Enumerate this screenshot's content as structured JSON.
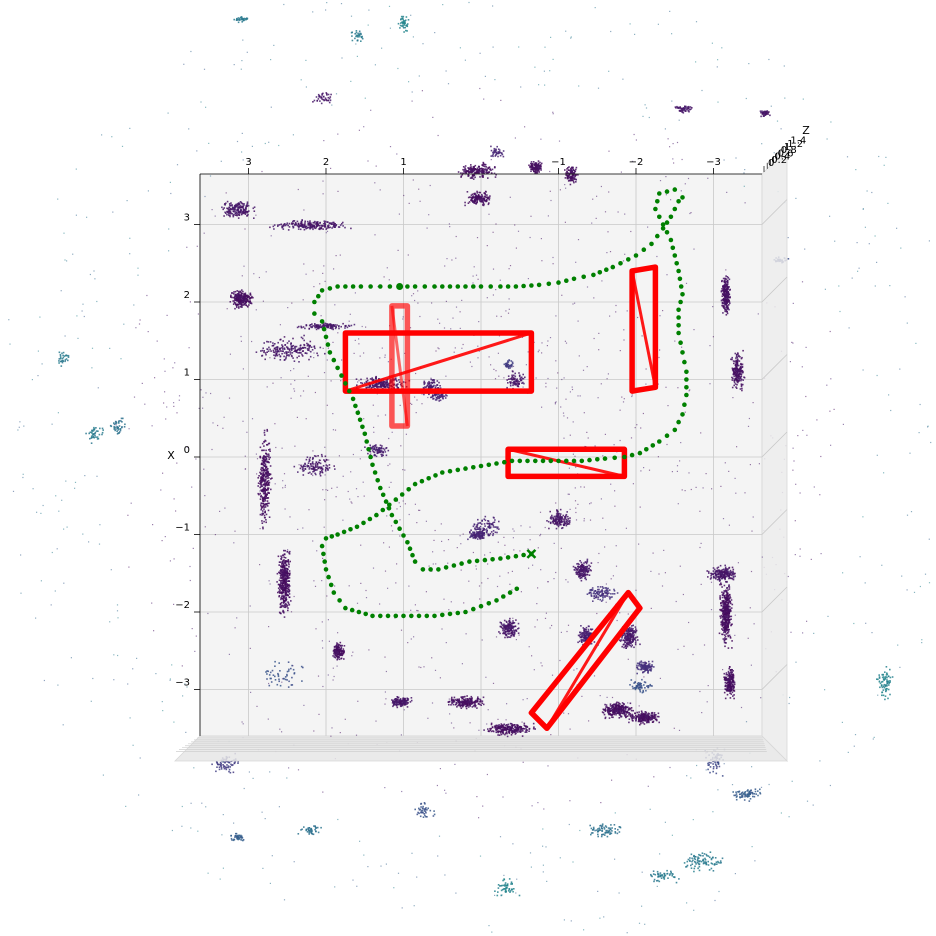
{
  "chart_data": {
    "type": "scatter",
    "title": "",
    "xlabel": "X",
    "ylabel": "",
    "zlabel": "Z",
    "projection": "3d-top-down",
    "grid": true,
    "horizontal_axis": {
      "ticks": [
        3,
        2,
        1,
        -1,
        -2,
        -3
      ],
      "tick_labels": [
        "3",
        "2",
        "1",
        "−1",
        "−2",
        "−3"
      ],
      "range": [
        3.65,
        -3.65
      ]
    },
    "x_axis": {
      "ticks": [
        3,
        2,
        1,
        0,
        -1,
        -2,
        -3
      ],
      "tick_labels": [
        "3",
        "2",
        "1",
        "0",
        "−1",
        "−2",
        "−3"
      ],
      "range": [
        3.65,
        -3.65
      ]
    },
    "z_axis": {
      "tick_labels": [
        "1.4",
        "1.2",
        "1",
        "0.8",
        "0.6",
        "0.4",
        "0.2",
        "0"
      ]
    },
    "point_cloud": {
      "colormap": "viridis",
      "description": "lidar points colored by height",
      "clusters": [
        {
          "h": 3.15,
          "x": 3.2,
          "w": 0.5,
          "d": 0.25,
          "n": 180,
          "c": 0.05
        },
        {
          "h": 2.2,
          "x": 3.0,
          "w": 1.2,
          "d": 0.15,
          "n": 220,
          "c": 0.05
        },
        {
          "h": 3.1,
          "x": 2.05,
          "w": 0.35,
          "d": 0.3,
          "n": 250,
          "c": 0.02
        },
        {
          "h": 2.0,
          "x": 1.7,
          "w": 0.9,
          "d": 0.1,
          "n": 120,
          "c": 0.05
        },
        {
          "h": 2.5,
          "x": 1.4,
          "w": 1.1,
          "d": 0.4,
          "n": 200,
          "c": 0.05
        },
        {
          "h": 1.3,
          "x": 0.95,
          "w": 0.8,
          "d": 0.25,
          "n": 230,
          "c": 0.05
        },
        {
          "h": 0.65,
          "x": 0.9,
          "w": 0.3,
          "d": 0.3,
          "n": 100,
          "c": 0.08
        },
        {
          "h": 0.05,
          "x": 3.7,
          "w": 0.6,
          "d": 0.25,
          "n": 200,
          "c": 0.02
        },
        {
          "h": 0.05,
          "x": 3.35,
          "w": 0.4,
          "d": 0.25,
          "n": 150,
          "c": 0.02
        },
        {
          "h": -0.7,
          "x": 3.75,
          "w": 0.25,
          "d": 0.2,
          "n": 120,
          "c": 0.02
        },
        {
          "h": -1.15,
          "x": 3.65,
          "w": 0.2,
          "d": 0.3,
          "n": 120,
          "c": 0.02
        },
        {
          "h": -3.15,
          "x": 2.1,
          "w": 0.15,
          "d": 0.6,
          "n": 250,
          "c": 0.03
        },
        {
          "h": -3.3,
          "x": 1.1,
          "w": 0.2,
          "d": 0.6,
          "n": 200,
          "c": 0.03
        },
        {
          "h": -3.1,
          "x": -1.5,
          "w": 0.5,
          "d": 0.25,
          "n": 200,
          "c": 0.05
        },
        {
          "h": 2.8,
          "x": -0.3,
          "w": 0.2,
          "d": 1.5,
          "n": 320,
          "c": 0.02
        },
        {
          "h": 2.55,
          "x": -1.6,
          "w": 0.2,
          "d": 1.1,
          "n": 380,
          "c": 0.02
        },
        {
          "h": 1.85,
          "x": -2.5,
          "w": 0.2,
          "d": 0.3,
          "n": 140,
          "c": 0.02
        },
        {
          "h": 1.05,
          "x": -3.15,
          "w": 0.35,
          "d": 0.15,
          "n": 150,
          "c": 0.05
        },
        {
          "h": 0.2,
          "x": -3.15,
          "w": 0.6,
          "d": 0.2,
          "n": 200,
          "c": 0.02
        },
        {
          "h": -0.35,
          "x": -3.5,
          "w": 0.8,
          "d": 0.2,
          "n": 260,
          "c": 0.02
        },
        {
          "h": -1.75,
          "x": -3.25,
          "w": 0.45,
          "d": 0.25,
          "n": 260,
          "c": 0.02
        },
        {
          "h": -2.1,
          "x": -3.35,
          "w": 0.5,
          "d": 0.2,
          "n": 220,
          "c": 0.02
        },
        {
          "h": -3.15,
          "x": -2.0,
          "w": 0.2,
          "d": 1.0,
          "n": 400,
          "c": 0.02
        },
        {
          "h": -3.2,
          "x": -2.9,
          "w": 0.2,
          "d": 0.55,
          "n": 200,
          "c": 0.02
        },
        {
          "h": -1.0,
          "x": -0.8,
          "w": 0.4,
          "d": 0.3,
          "n": 150,
          "c": 0.05
        },
        {
          "h": -1.3,
          "x": -1.45,
          "w": 0.3,
          "d": 0.3,
          "n": 150,
          "c": 0.05
        },
        {
          "h": 0.05,
          "x": -1.0,
          "w": 0.3,
          "d": 0.15,
          "n": 100,
          "c": 0.1
        },
        {
          "h": -0.35,
          "x": -2.2,
          "w": 0.3,
          "d": 0.3,
          "n": 160,
          "c": 0.05
        },
        {
          "h": -1.9,
          "x": -2.3,
          "w": 0.3,
          "d": 0.4,
          "n": 200,
          "c": 0.05
        },
        {
          "h": -1.35,
          "x": -2.3,
          "w": 0.3,
          "d": 0.3,
          "n": 140,
          "c": 0.08
        },
        {
          "h": -2.1,
          "x": -2.7,
          "w": 0.3,
          "d": 0.2,
          "n": 120,
          "c": 0.15
        },
        {
          "h": 2.15,
          "x": -0.1,
          "w": 0.6,
          "d": 0.35,
          "n": 120,
          "c": 0.05
        },
        {
          "h": 1.35,
          "x": 0.1,
          "w": 0.4,
          "d": 0.2,
          "n": 80,
          "c": 0.08
        },
        {
          "h": 0.55,
          "x": 0.8,
          "w": 0.25,
          "d": 0.2,
          "n": 60,
          "c": 0.1
        },
        {
          "h": -0.45,
          "x": 1.0,
          "w": 0.35,
          "d": 0.3,
          "n": 80,
          "c": 0.05
        },
        {
          "h": -0.35,
          "x": 1.2,
          "w": 0.2,
          "d": 0.15,
          "n": 40,
          "c": 0.2
        },
        {
          "h": -0.05,
          "x": -0.9,
          "w": 0.5,
          "d": 0.35,
          "n": 100,
          "c": 0.1
        },
        {
          "h": -1.55,
          "x": -1.75,
          "w": 0.5,
          "d": 0.25,
          "n": 100,
          "c": 0.15
        },
        {
          "h": 2.6,
          "x": -2.8,
          "w": 0.8,
          "d": 0.5,
          "n": 50,
          "c": 0.3
        },
        {
          "h": -2.05,
          "x": -2.95,
          "w": 0.35,
          "d": 0.25,
          "n": 60,
          "c": 0.3
        },
        {
          "h": -2.85,
          "x": -5.2,
          "w": 0.7,
          "d": 0.35,
          "n": 90,
          "c": 0.5
        },
        {
          "h": -5.2,
          "x": -2.9,
          "w": 0.25,
          "d": 0.5,
          "n": 70,
          "c": 0.55
        },
        {
          "h": -0.3,
          "x": -5.55,
          "w": 0.4,
          "d": 0.3,
          "n": 50,
          "c": 0.55
        },
        {
          "h": -3.4,
          "x": -4.35,
          "w": 0.5,
          "d": 0.2,
          "n": 70,
          "c": 0.35
        },
        {
          "h": 2.2,
          "x": -4.8,
          "w": 0.35,
          "d": 0.15,
          "n": 40,
          "c": 0.45
        },
        {
          "h": -0.2,
          "x": 3.95,
          "w": 0.25,
          "d": 0.2,
          "n": 40,
          "c": 0.1
        },
        {
          "h": -3.85,
          "x": 2.55,
          "w": 0.25,
          "d": 0.1,
          "n": 30,
          "c": 0.25
        },
        {
          "h": -2.6,
          "x": 4.5,
          "w": 0.3,
          "d": 0.15,
          "n": 50,
          "c": 0.05
        },
        {
          "h": -3.65,
          "x": 4.45,
          "w": 0.2,
          "d": 0.1,
          "n": 40,
          "c": 0.05
        },
        {
          "h": 2.05,
          "x": 4.65,
          "w": 0.3,
          "d": 0.2,
          "n": 40,
          "c": 0.05
        },
        {
          "h": 3.3,
          "x": -3.95,
          "w": 0.4,
          "d": 0.3,
          "n": 70,
          "c": 0.2
        },
        {
          "h": 3.15,
          "x": -4.9,
          "w": 0.25,
          "d": 0.15,
          "n": 40,
          "c": 0.35
        },
        {
          "h": 4.7,
          "x": 0.4,
          "w": 0.25,
          "d": 0.3,
          "n": 40,
          "c": 0.45
        },
        {
          "h": -3.0,
          "x": -3.9,
          "w": 0.3,
          "d": 0.45,
          "n": 60,
          "c": 0.25
        },
        {
          "h": -1.6,
          "x": -4.8,
          "w": 0.6,
          "d": 0.25,
          "n": 70,
          "c": 0.45
        },
        {
          "h": -2.35,
          "x": -5.4,
          "w": 0.5,
          "d": 0.2,
          "n": 50,
          "c": 0.5
        },
        {
          "h": 5.4,
          "x": 1.3,
          "w": 0.25,
          "d": 0.3,
          "n": 30,
          "c": 0.5
        },
        {
          "h": 5.0,
          "x": 0.3,
          "w": 0.3,
          "d": 0.3,
          "n": 40,
          "c": 0.5
        },
        {
          "h": 3.1,
          "x": 5.65,
          "w": 0.3,
          "d": 0.1,
          "n": 30,
          "c": 0.5
        },
        {
          "h": 1.0,
          "x": 5.6,
          "w": 0.2,
          "d": 0.3,
          "n": 40,
          "c": 0.55
        },
        {
          "h": 1.6,
          "x": 5.45,
          "w": 0.2,
          "d": 0.2,
          "n": 30,
          "c": 0.5
        },
        {
          "h": -2.4,
          "x": -6.3,
          "w": 0.2,
          "d": 0.15,
          "n": 30,
          "c": 0.6
        },
        {
          "h": 0.75,
          "x": -4.55,
          "w": 0.35,
          "d": 0.3,
          "n": 40,
          "c": 0.3
        }
      ],
      "noise_points": 1600
    },
    "bounding_boxes": [
      {
        "corners": [
          [
            1.15,
            1.95
          ],
          [
            1.15,
            0.4
          ],
          [
            0.95,
            0.4
          ],
          [
            0.95,
            1.95
          ]
        ],
        "color": "#ff0000",
        "opacity": 0.65
      },
      {
        "corners": [
          [
            1.75,
            0.85
          ],
          [
            -0.65,
            0.85
          ],
          [
            -0.65,
            1.6
          ],
          [
            1.75,
            1.6
          ]
        ],
        "color": "#ff0000",
        "opacity": 1.0
      },
      {
        "corners": [
          [
            -0.35,
            0.1
          ],
          [
            -0.35,
            -0.25
          ],
          [
            -1.85,
            -0.25
          ],
          [
            -1.85,
            0.1
          ]
        ],
        "color": "#ff0000",
        "opacity": 1.0
      },
      {
        "corners": [
          [
            -1.95,
            2.4
          ],
          [
            -1.95,
            0.85
          ],
          [
            -2.25,
            0.9
          ],
          [
            -2.25,
            2.45
          ]
        ],
        "color": "#ff0000",
        "opacity": 1.0
      },
      {
        "corners": [
          [
            -1.9,
            -1.75
          ],
          [
            -0.65,
            -3.3
          ],
          [
            -0.85,
            -3.5
          ],
          [
            -2.05,
            -1.95
          ]
        ],
        "color": "#ff0000",
        "opacity": 1.0
      }
    ],
    "trajectory": {
      "color": "#008000",
      "points": [
        [
          -0.65,
          -1.25
        ],
        [
          -0.45,
          -1.28
        ],
        [
          -0.25,
          -1.31
        ],
        [
          -0.05,
          -1.33
        ],
        [
          0.15,
          -1.35
        ],
        [
          0.35,
          -1.4
        ],
        [
          0.55,
          -1.45
        ],
        [
          0.75,
          -1.45
        ],
        [
          0.85,
          -1.35
        ],
        [
          0.95,
          -1.1
        ],
        [
          1.15,
          -0.75
        ],
        [
          1.3,
          -0.4
        ],
        [
          1.4,
          -0.1
        ],
        [
          1.5,
          0.3
        ],
        [
          1.65,
          0.75
        ],
        [
          1.8,
          1.05
        ],
        [
          1.95,
          1.35
        ],
        [
          2.05,
          1.75
        ],
        [
          2.15,
          1.85
        ],
        [
          2.15,
          2.0
        ],
        [
          2.05,
          2.15
        ],
        [
          1.85,
          2.2
        ],
        [
          1.55,
          2.2
        ],
        [
          1.3,
          2.2
        ],
        [
          1.05,
          2.2
        ],
        [
          0.85,
          2.2
        ],
        [
          0.6,
          2.2
        ],
        [
          0.3,
          2.2
        ],
        [
          0.0,
          2.2
        ],
        [
          -0.25,
          2.2
        ],
        [
          -0.45,
          2.2
        ],
        [
          -0.75,
          2.22
        ],
        [
          -1.0,
          2.25
        ],
        [
          -1.2,
          2.3
        ],
        [
          -1.45,
          2.35
        ],
        [
          -1.7,
          2.45
        ],
        [
          -2.0,
          2.6
        ],
        [
          -2.2,
          2.75
        ],
        [
          -2.35,
          2.95
        ],
        [
          -2.45,
          3.1
        ],
        [
          -2.55,
          3.3
        ],
        [
          -2.6,
          3.35
        ],
        [
          -2.5,
          3.45
        ],
        [
          -2.3,
          3.4
        ],
        [
          -2.25,
          3.2
        ],
        [
          -2.45,
          2.8
        ],
        [
          -2.55,
          2.4
        ],
        [
          -2.6,
          2.1
        ],
        [
          -2.55,
          1.9
        ],
        [
          -2.55,
          1.6
        ],
        [
          -2.6,
          1.35
        ],
        [
          -2.65,
          1.1
        ],
        [
          -2.65,
          0.8
        ],
        [
          -2.6,
          0.55
        ],
        [
          -2.5,
          0.35
        ],
        [
          -2.3,
          0.2
        ],
        [
          -2.05,
          0.05
        ],
        [
          -1.85,
          0.0
        ],
        [
          -1.6,
          -0.02
        ],
        [
          -1.3,
          -0.05
        ],
        [
          -1.0,
          -0.05
        ],
        [
          -0.7,
          -0.05
        ],
        [
          -0.4,
          -0.05
        ],
        [
          -0.1,
          -0.1
        ],
        [
          0.2,
          -0.15
        ],
        [
          0.5,
          -0.2
        ],
        [
          0.85,
          -0.35
        ],
        [
          1.1,
          -0.55
        ],
        [
          1.35,
          -0.75
        ],
        [
          1.6,
          -0.9
        ],
        [
          1.85,
          -1.0
        ],
        [
          2.0,
          -1.05
        ],
        [
          2.05,
          -1.15
        ],
        [
          2.0,
          -1.45
        ],
        [
          1.9,
          -1.75
        ],
        [
          1.75,
          -1.95
        ],
        [
          1.4,
          -2.05
        ],
        [
          1.0,
          -2.05
        ],
        [
          0.6,
          -2.05
        ],
        [
          0.2,
          -2.0
        ],
        [
          -0.2,
          -1.85
        ],
        [
          -0.55,
          -1.65
        ]
      ],
      "start": [
        -0.65,
        -1.25
      ],
      "end_marker": [
        1.05,
        2.2
      ],
      "end_marker_label": ""
    }
  }
}
